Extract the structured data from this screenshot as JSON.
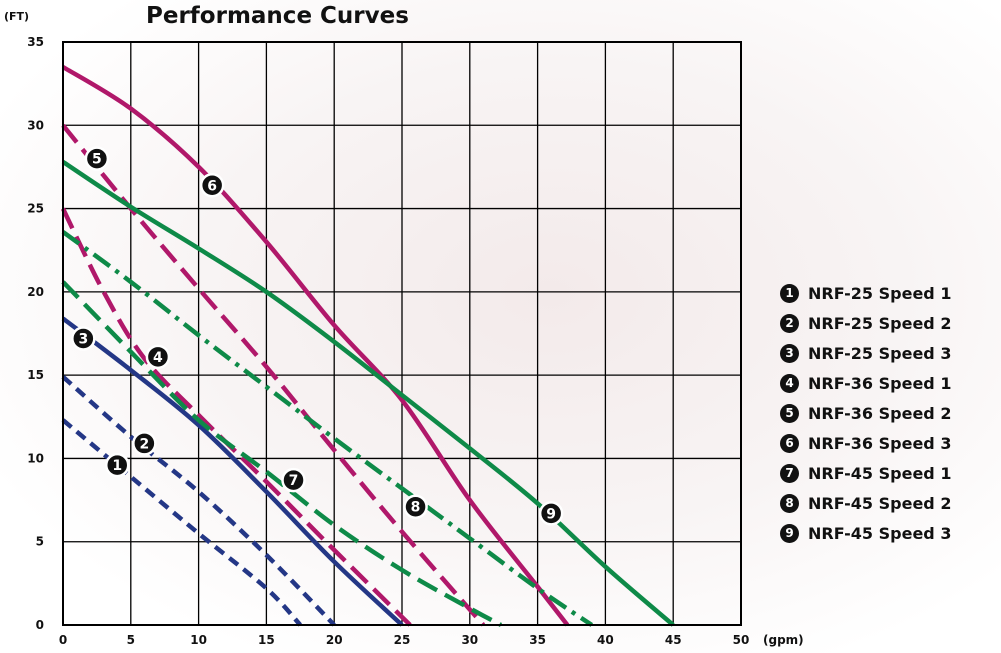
{
  "chart_data": {
    "type": "line",
    "title": "Performance Curves",
    "ylabel": "(FT)",
    "xlabel": "(gpm)",
    "xlim": [
      0,
      50
    ],
    "ylim": [
      0,
      35
    ],
    "xticks": [
      0,
      5,
      10,
      15,
      20,
      25,
      30,
      35,
      40,
      45,
      50
    ],
    "yticks": [
      0,
      5,
      10,
      15,
      20,
      25,
      30,
      35
    ],
    "grid": true,
    "legend_position": "right",
    "colors": {
      "navy": "#243786",
      "magenta": "#b0186a",
      "green": "#0e8a48"
    },
    "series": [
      {
        "name": "NRF-25 Speed 1",
        "marker": "1",
        "color": "#243786",
        "dash": "short",
        "label_at": [
          4,
          9.6
        ],
        "points": [
          [
            0,
            12.3
          ],
          [
            5,
            8.9
          ],
          [
            10,
            5.5
          ],
          [
            15,
            2.2
          ],
          [
            17.5,
            0
          ]
        ]
      },
      {
        "name": "NRF-25 Speed 2",
        "marker": "2",
        "color": "#243786",
        "dash": "short",
        "label_at": [
          6,
          10.9
        ],
        "points": [
          [
            0,
            14.9
          ],
          [
            5,
            11.3
          ],
          [
            10,
            8
          ],
          [
            15,
            4.2
          ],
          [
            20,
            0
          ]
        ]
      },
      {
        "name": "NRF-25 Speed 3",
        "marker": "3",
        "color": "#243786",
        "dash": "solid",
        "label_at": [
          1.5,
          17.2
        ],
        "points": [
          [
            0,
            18.4
          ],
          [
            5,
            15.3
          ],
          [
            10,
            12
          ],
          [
            15,
            8
          ],
          [
            20,
            3.8
          ],
          [
            25,
            0
          ]
        ]
      },
      {
        "name": "NRF-36 Speed 1",
        "marker": "4",
        "color": "#b0186a",
        "dash": "long",
        "label_at": [
          7,
          16.1
        ],
        "points": [
          [
            0,
            25
          ],
          [
            3,
            20
          ],
          [
            6,
            16
          ],
          [
            10,
            12.6
          ],
          [
            15,
            8.6
          ],
          [
            20,
            4.5
          ],
          [
            25.6,
            0
          ]
        ]
      },
      {
        "name": "NRF-36 Speed 2",
        "marker": "5",
        "color": "#b0186a",
        "dash": "long",
        "label_at": [
          2.5,
          28
        ],
        "points": [
          [
            0,
            30
          ],
          [
            5,
            25
          ],
          [
            10,
            20.2
          ],
          [
            15,
            15.5
          ],
          [
            20,
            10.5
          ],
          [
            25,
            5.6
          ],
          [
            31,
            0
          ]
        ]
      },
      {
        "name": "NRF-36 Speed 3",
        "marker": "6",
        "color": "#b0186a",
        "dash": "solid",
        "label_at": [
          11,
          26.4
        ],
        "points": [
          [
            0,
            33.5
          ],
          [
            5,
            31
          ],
          [
            10,
            27.5
          ],
          [
            15,
            23
          ],
          [
            20,
            18
          ],
          [
            25,
            13.5
          ],
          [
            30,
            7.5
          ],
          [
            35,
            2.3
          ],
          [
            37.2,
            0
          ]
        ]
      },
      {
        "name": "NRF-45 Speed 1",
        "marker": "7",
        "color": "#0e8a48",
        "dash": "long",
        "label_at": [
          17,
          8.7
        ],
        "points": [
          [
            0,
            20.6
          ],
          [
            5,
            16.4
          ],
          [
            10,
            12.3
          ],
          [
            15,
            9.2
          ],
          [
            20,
            6
          ],
          [
            25,
            3.3
          ],
          [
            30,
            1
          ],
          [
            32.3,
            0
          ]
        ]
      },
      {
        "name": "NRF-45 Speed 2",
        "marker": "8",
        "color": "#0e8a48",
        "dash": "dashdot",
        "label_at": [
          26,
          7.1
        ],
        "points": [
          [
            0,
            23.6
          ],
          [
            5,
            20.6
          ],
          [
            10,
            17.4
          ],
          [
            15,
            14.3
          ],
          [
            20,
            11.2
          ],
          [
            25,
            8.2
          ],
          [
            30,
            5.2
          ],
          [
            35,
            2.2
          ],
          [
            39,
            0
          ]
        ]
      },
      {
        "name": "NRF-45 Speed 3",
        "marker": "9",
        "color": "#0e8a48",
        "dash": "solid",
        "label_at": [
          36,
          6.7
        ],
        "points": [
          [
            0,
            27.8
          ],
          [
            5,
            25.1
          ],
          [
            10,
            22.6
          ],
          [
            15,
            20
          ],
          [
            20,
            17
          ],
          [
            25,
            13.8
          ],
          [
            30,
            10.6
          ],
          [
            35,
            7.3
          ],
          [
            40,
            3.5
          ],
          [
            45,
            0
          ]
        ]
      }
    ]
  }
}
